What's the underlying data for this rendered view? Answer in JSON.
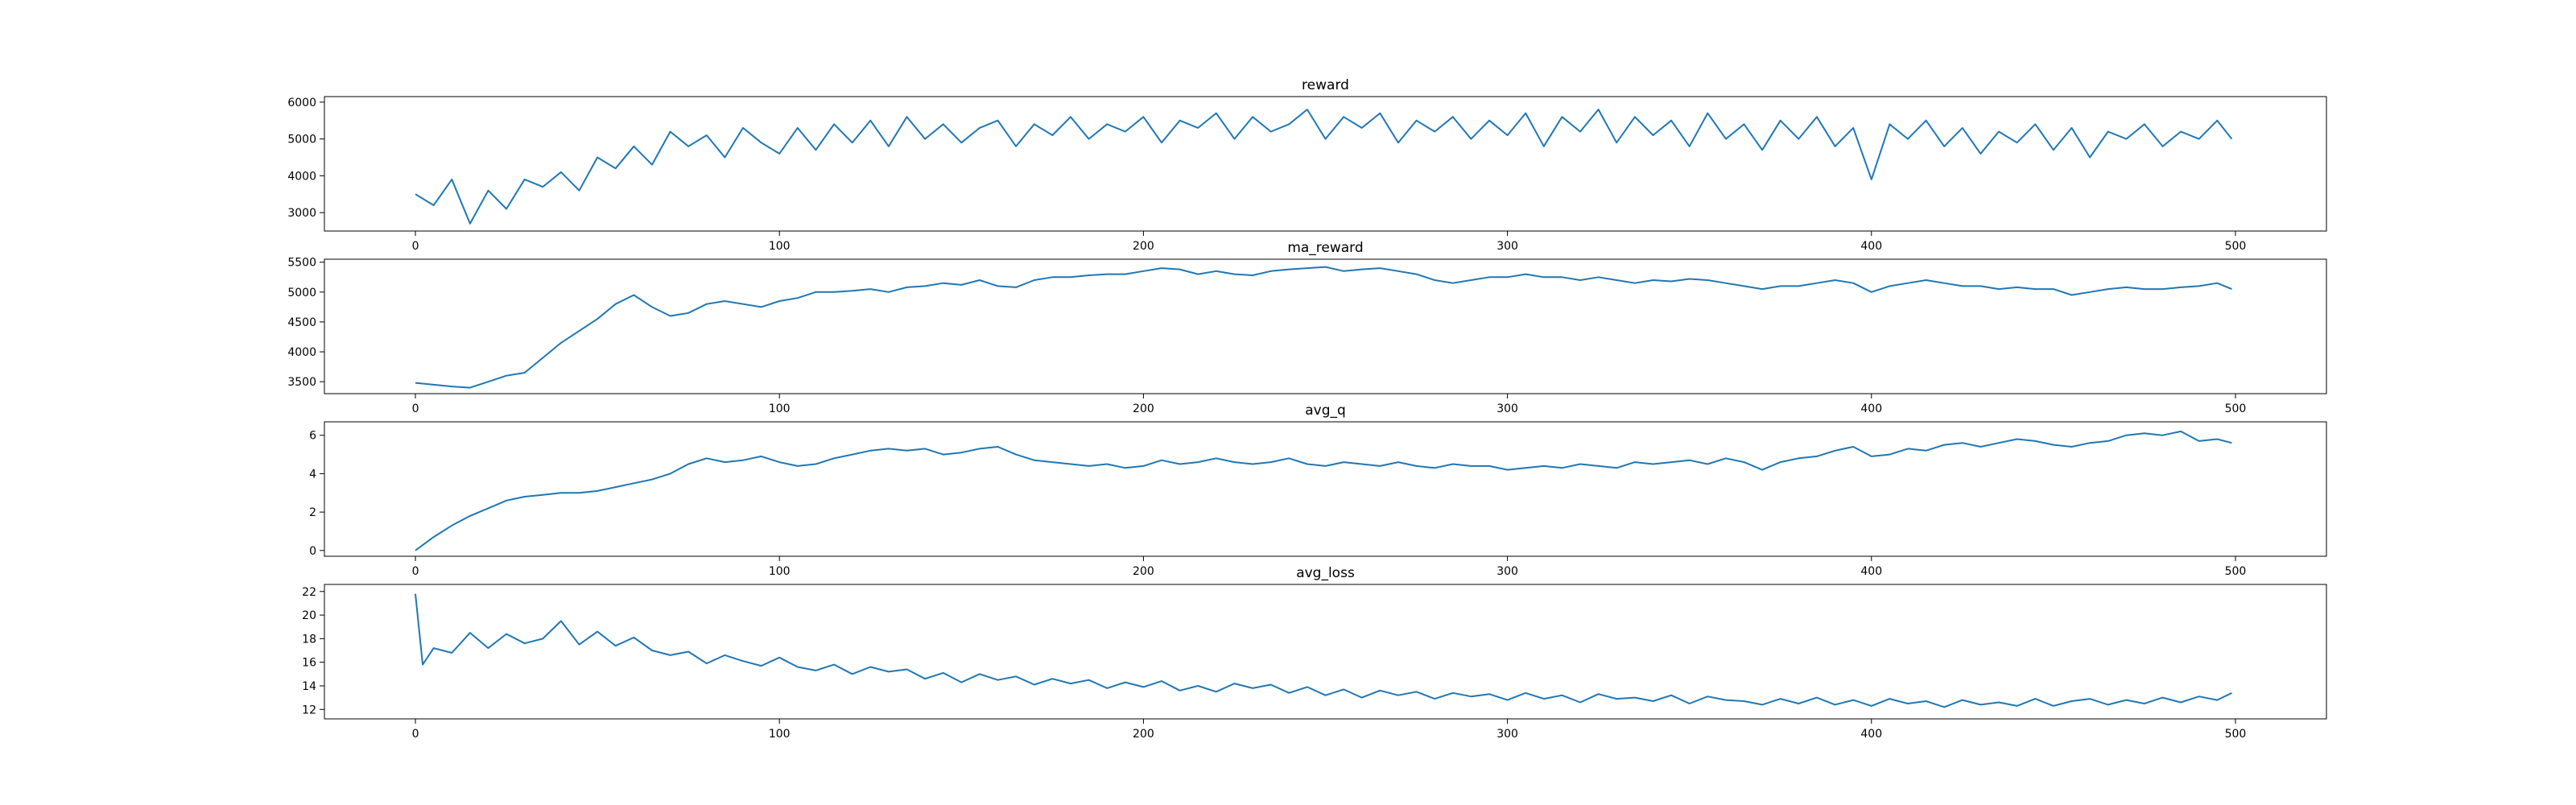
{
  "chart_data": [
    {
      "type": "line",
      "title": "reward",
      "xlim": [
        -25,
        525
      ],
      "ylim": [
        2500,
        6150
      ],
      "xticks": [
        0,
        100,
        200,
        300,
        400,
        500
      ],
      "yticks": [
        3000,
        4000,
        5000,
        6000
      ],
      "color": "#1f77b4",
      "series": [
        {
          "x": [
            0,
            5,
            10,
            15,
            20,
            25,
            30,
            35,
            40,
            45,
            50,
            55,
            60,
            65,
            70,
            75,
            80,
            85,
            90,
            95,
            100,
            105,
            110,
            115,
            120,
            125,
            130,
            135,
            140,
            145,
            150,
            155,
            160,
            165,
            170,
            175,
            180,
            185,
            190,
            195,
            200,
            205,
            210,
            215,
            220,
            225,
            230,
            235,
            240,
            245,
            250,
            255,
            260,
            265,
            270,
            275,
            280,
            285,
            290,
            295,
            300,
            305,
            310,
            315,
            320,
            325,
            330,
            335,
            340,
            345,
            350,
            355,
            360,
            365,
            370,
            375,
            380,
            385,
            390,
            395,
            400,
            405,
            410,
            415,
            420,
            425,
            430,
            435,
            440,
            445,
            450,
            455,
            460,
            465,
            470,
            475,
            480,
            485,
            490,
            495,
            499
          ],
          "values": [
            3500,
            3200,
            3900,
            2700,
            3600,
            3100,
            3900,
            3700,
            4100,
            3600,
            4500,
            4200,
            4800,
            4300,
            5200,
            4800,
            5100,
            4500,
            5300,
            4900,
            4600,
            5300,
            4700,
            5400,
            4900,
            5500,
            4800,
            5600,
            5000,
            5400,
            4900,
            5300,
            5500,
            4800,
            5400,
            5100,
            5600,
            5000,
            5400,
            5200,
            5600,
            4900,
            5500,
            5300,
            5700,
            5000,
            5600,
            5200,
            5400,
            5800,
            5000,
            5600,
            5300,
            5700,
            4900,
            5500,
            5200,
            5600,
            5000,
            5500,
            5100,
            5700,
            4800,
            5600,
            5200,
            5800,
            4900,
            5600,
            5100,
            5500,
            4800,
            5700,
            5000,
            5400,
            4700,
            5500,
            5000,
            5600,
            4800,
            5300,
            3900,
            5400,
            5000,
            5500,
            4800,
            5300,
            4600,
            5200,
            4900,
            5400,
            4700,
            5300,
            4500,
            5200,
            5000,
            5400,
            4800,
            5200,
            5000,
            5500,
            5000
          ]
        }
      ]
    },
    {
      "type": "line",
      "title": "ma_reward",
      "xlim": [
        -25,
        525
      ],
      "ylim": [
        3300,
        5550
      ],
      "xticks": [
        0,
        100,
        200,
        300,
        400,
        500
      ],
      "yticks": [
        3500,
        4000,
        4500,
        5000,
        5500
      ],
      "color": "#1f77b4",
      "series": [
        {
          "x": [
            0,
            5,
            10,
            15,
            20,
            25,
            30,
            35,
            40,
            45,
            50,
            55,
            60,
            65,
            70,
            75,
            80,
            85,
            90,
            95,
            100,
            105,
            110,
            115,
            120,
            125,
            130,
            135,
            140,
            145,
            150,
            155,
            160,
            165,
            170,
            175,
            180,
            185,
            190,
            195,
            200,
            205,
            210,
            215,
            220,
            225,
            230,
            235,
            240,
            245,
            250,
            255,
            260,
            265,
            270,
            275,
            280,
            285,
            290,
            295,
            300,
            305,
            310,
            315,
            320,
            325,
            330,
            335,
            340,
            345,
            350,
            355,
            360,
            365,
            370,
            375,
            380,
            385,
            390,
            395,
            400,
            405,
            410,
            415,
            420,
            425,
            430,
            435,
            440,
            445,
            450,
            455,
            460,
            465,
            470,
            475,
            480,
            485,
            490,
            495,
            499
          ],
          "values": [
            3480,
            3450,
            3420,
            3400,
            3500,
            3600,
            3650,
            3900,
            4150,
            4350,
            4550,
            4800,
            4950,
            4750,
            4600,
            4650,
            4800,
            4850,
            4800,
            4750,
            4850,
            4900,
            5000,
            5000,
            5020,
            5050,
            5000,
            5080,
            5100,
            5150,
            5120,
            5200,
            5100,
            5080,
            5200,
            5250,
            5250,
            5280,
            5300,
            5300,
            5350,
            5400,
            5380,
            5300,
            5350,
            5300,
            5280,
            5350,
            5380,
            5400,
            5420,
            5350,
            5380,
            5400,
            5350,
            5300,
            5200,
            5150,
            5200,
            5250,
            5250,
            5300,
            5250,
            5250,
            5200,
            5250,
            5200,
            5150,
            5200,
            5180,
            5220,
            5200,
            5150,
            5100,
            5050,
            5100,
            5100,
            5150,
            5200,
            5150,
            5000,
            5100,
            5150,
            5200,
            5150,
            5100,
            5100,
            5050,
            5080,
            5050,
            5050,
            4950,
            5000,
            5050,
            5080,
            5050,
            5050,
            5080,
            5100,
            5150,
            5050
          ]
        }
      ]
    },
    {
      "type": "line",
      "title": "avg_q",
      "xlim": [
        -25,
        525
      ],
      "ylim": [
        -0.3,
        6.7
      ],
      "xticks": [
        0,
        100,
        200,
        300,
        400,
        500
      ],
      "yticks": [
        0,
        2,
        4,
        6
      ],
      "color": "#1f77b4",
      "series": [
        {
          "x": [
            0,
            5,
            10,
            15,
            20,
            25,
            30,
            35,
            40,
            45,
            50,
            55,
            60,
            65,
            70,
            75,
            80,
            85,
            90,
            95,
            100,
            105,
            110,
            115,
            120,
            125,
            130,
            135,
            140,
            145,
            150,
            155,
            160,
            165,
            170,
            175,
            180,
            185,
            190,
            195,
            200,
            205,
            210,
            215,
            220,
            225,
            230,
            235,
            240,
            245,
            250,
            255,
            260,
            265,
            270,
            275,
            280,
            285,
            290,
            295,
            300,
            305,
            310,
            315,
            320,
            325,
            330,
            335,
            340,
            345,
            350,
            355,
            360,
            365,
            370,
            375,
            380,
            385,
            390,
            395,
            400,
            405,
            410,
            415,
            420,
            425,
            430,
            435,
            440,
            445,
            450,
            455,
            460,
            465,
            470,
            475,
            480,
            485,
            490,
            495,
            499
          ],
          "values": [
            0.0,
            0.7,
            1.3,
            1.8,
            2.2,
            2.6,
            2.8,
            2.9,
            3.0,
            3.0,
            3.1,
            3.3,
            3.5,
            3.7,
            4.0,
            4.5,
            4.8,
            4.6,
            4.7,
            4.9,
            4.6,
            4.4,
            4.5,
            4.8,
            5.0,
            5.2,
            5.3,
            5.2,
            5.3,
            5.0,
            5.1,
            5.3,
            5.4,
            5.0,
            4.7,
            4.6,
            4.5,
            4.4,
            4.5,
            4.3,
            4.4,
            4.7,
            4.5,
            4.6,
            4.8,
            4.6,
            4.5,
            4.6,
            4.8,
            4.5,
            4.4,
            4.6,
            4.5,
            4.4,
            4.6,
            4.4,
            4.3,
            4.5,
            4.4,
            4.4,
            4.2,
            4.3,
            4.4,
            4.3,
            4.5,
            4.4,
            4.3,
            4.6,
            4.5,
            4.6,
            4.7,
            4.5,
            4.8,
            4.6,
            4.2,
            4.6,
            4.8,
            4.9,
            5.2,
            5.4,
            4.9,
            5.0,
            5.3,
            5.2,
            5.5,
            5.6,
            5.4,
            5.6,
            5.8,
            5.7,
            5.5,
            5.4,
            5.6,
            5.7,
            6.0,
            6.1,
            6.0,
            6.2,
            5.7,
            5.8,
            5.6
          ]
        }
      ]
    },
    {
      "type": "line",
      "title": "avg_loss",
      "xlim": [
        -25,
        525
      ],
      "ylim": [
        11.2,
        22.6
      ],
      "xticks": [
        0,
        100,
        200,
        300,
        400,
        500
      ],
      "yticks": [
        12,
        14,
        16,
        18,
        20,
        22
      ],
      "color": "#1f77b4",
      "series": [
        {
          "x": [
            0,
            2,
            5,
            10,
            15,
            20,
            25,
            30,
            35,
            40,
            45,
            50,
            55,
            60,
            65,
            70,
            75,
            80,
            85,
            90,
            95,
            100,
            105,
            110,
            115,
            120,
            125,
            130,
            135,
            140,
            145,
            150,
            155,
            160,
            165,
            170,
            175,
            180,
            185,
            190,
            195,
            200,
            205,
            210,
            215,
            220,
            225,
            230,
            235,
            240,
            245,
            250,
            255,
            260,
            265,
            270,
            275,
            280,
            285,
            290,
            295,
            300,
            305,
            310,
            315,
            320,
            325,
            330,
            335,
            340,
            345,
            350,
            355,
            360,
            365,
            370,
            375,
            380,
            385,
            390,
            395,
            400,
            405,
            410,
            415,
            420,
            425,
            430,
            435,
            440,
            445,
            450,
            455,
            460,
            465,
            470,
            475,
            480,
            485,
            490,
            495,
            499
          ],
          "values": [
            21.8,
            15.8,
            17.2,
            16.8,
            18.5,
            17.2,
            18.4,
            17.6,
            18.0,
            19.5,
            17.5,
            18.6,
            17.4,
            18.1,
            17.0,
            16.6,
            16.9,
            15.9,
            16.6,
            16.1,
            15.7,
            16.4,
            15.6,
            15.3,
            15.8,
            15.0,
            15.6,
            15.2,
            15.4,
            14.6,
            15.1,
            14.3,
            15.0,
            14.5,
            14.8,
            14.1,
            14.6,
            14.2,
            14.5,
            13.8,
            14.3,
            13.9,
            14.4,
            13.6,
            14.0,
            13.5,
            14.2,
            13.8,
            14.1,
            13.4,
            13.9,
            13.2,
            13.7,
            13.0,
            13.6,
            13.2,
            13.5,
            12.9,
            13.4,
            13.1,
            13.3,
            12.8,
            13.4,
            12.9,
            13.2,
            12.6,
            13.3,
            12.9,
            13.0,
            12.7,
            13.2,
            12.5,
            13.1,
            12.8,
            12.7,
            12.4,
            12.9,
            12.5,
            13.0,
            12.4,
            12.8,
            12.3,
            12.9,
            12.5,
            12.7,
            12.2,
            12.8,
            12.4,
            12.6,
            12.3,
            12.9,
            12.3,
            12.7,
            12.9,
            12.4,
            12.8,
            12.5,
            13.0,
            12.6,
            13.1,
            12.8,
            13.4
          ]
        }
      ]
    }
  ]
}
